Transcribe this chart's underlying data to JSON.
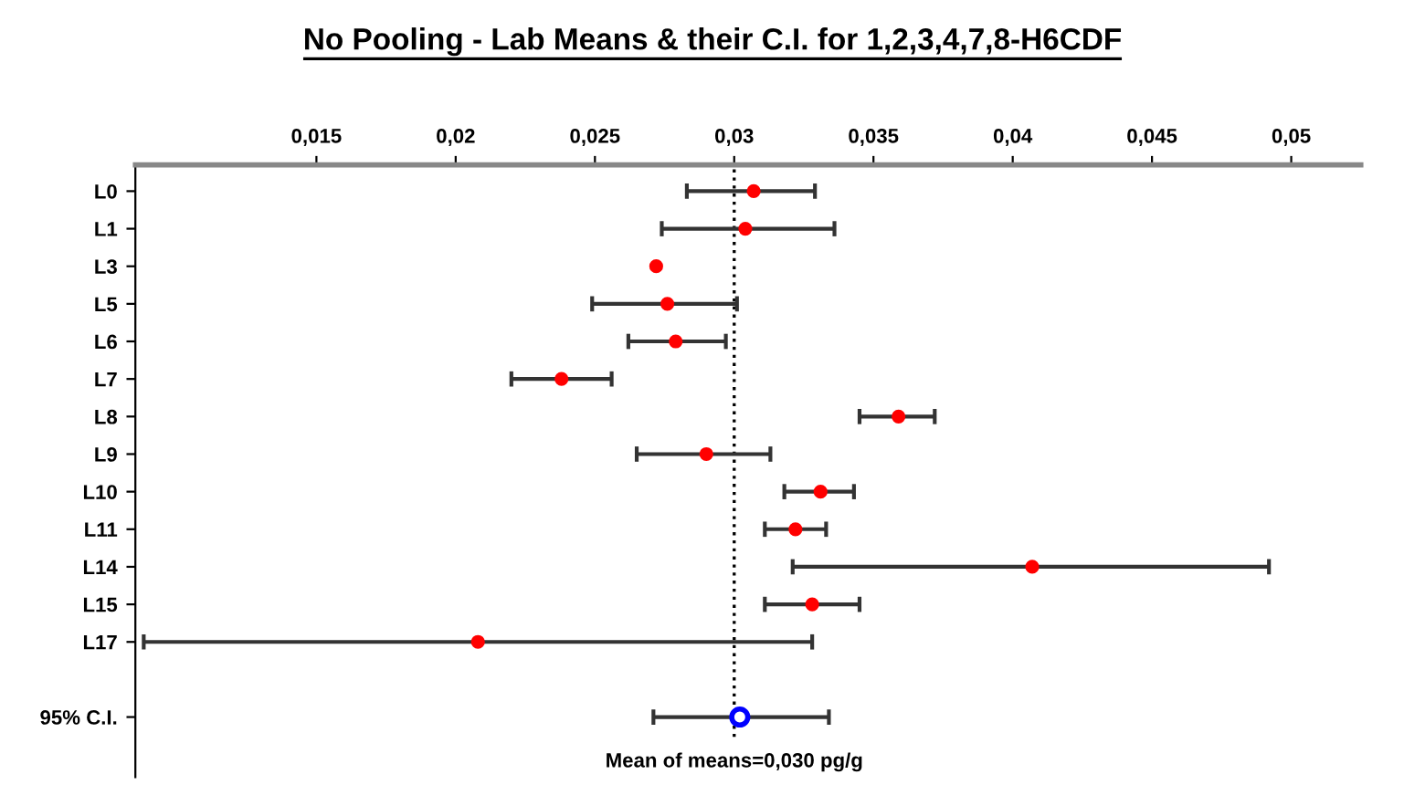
{
  "chart_data": {
    "type": "scatter",
    "orientation": "horizontal",
    "title": "No Pooling - Lab Means & their C.I. for 1,2,3,4,7,8-H6CDF",
    "categories": [
      "L0",
      "L1",
      "L3",
      "L5",
      "L6",
      "L7",
      "L8",
      "L9",
      "L10",
      "L11",
      "L14",
      "L15",
      "L17",
      null,
      "95% C.I."
    ],
    "series": [
      {
        "color": "#ff0000",
        "marker": "circle",
        "values": [
          0.0307,
          0.0304,
          0.0272,
          0.0276,
          0.0279,
          0.0238,
          0.0359,
          0.029,
          0.0331,
          0.0322,
          0.0407,
          0.0328,
          0.0208,
          null,
          null
        ],
        "errors": [
          [
            0.0283,
            0.0329
          ],
          [
            0.0274,
            0.0336
          ],
          null,
          [
            0.0249,
            0.0301
          ],
          [
            0.0262,
            0.0297
          ],
          [
            0.022,
            0.0256
          ],
          [
            0.0345,
            0.0372
          ],
          [
            0.0265,
            0.0313
          ],
          [
            0.0318,
            0.0343
          ],
          [
            0.0311,
            0.0333
          ],
          [
            0.0321,
            0.0492
          ],
          [
            0.0311,
            0.0345
          ],
          [
            0.0088,
            0.0328
          ],
          null,
          null
        ]
      },
      {
        "color": "#0000ff",
        "marker": "open circle",
        "values": [
          null,
          null,
          null,
          null,
          null,
          null,
          null,
          null,
          null,
          null,
          null,
          null,
          null,
          null,
          0.0302
        ],
        "errors": [
          null,
          null,
          null,
          null,
          null,
          null,
          null,
          null,
          null,
          null,
          null,
          null,
          null,
          null,
          [
            0.0271,
            0.0334
          ]
        ]
      }
    ],
    "xlim": [
      0.0085,
      0.0525
    ],
    "xticks": [
      {
        "value": 0.015,
        "label": "0,015"
      },
      {
        "value": 0.02,
        "label": "0,02"
      },
      {
        "value": 0.025,
        "label": "0,025"
      },
      {
        "value": 0.03,
        "label": "0,03"
      },
      {
        "value": 0.035,
        "label": "0,035"
      },
      {
        "value": 0.04,
        "label": "0,04"
      },
      {
        "value": 0.045,
        "label": "0,045"
      },
      {
        "value": 0.05,
        "label": "0,05"
      }
    ],
    "ref_lines": [
      {
        "axis": "x",
        "value": 0.03,
        "label": "Mean of means=0,030 pg/g",
        "color": "#000000",
        "line_style": "dotted"
      }
    ],
    "grid": false,
    "legend": false
  }
}
